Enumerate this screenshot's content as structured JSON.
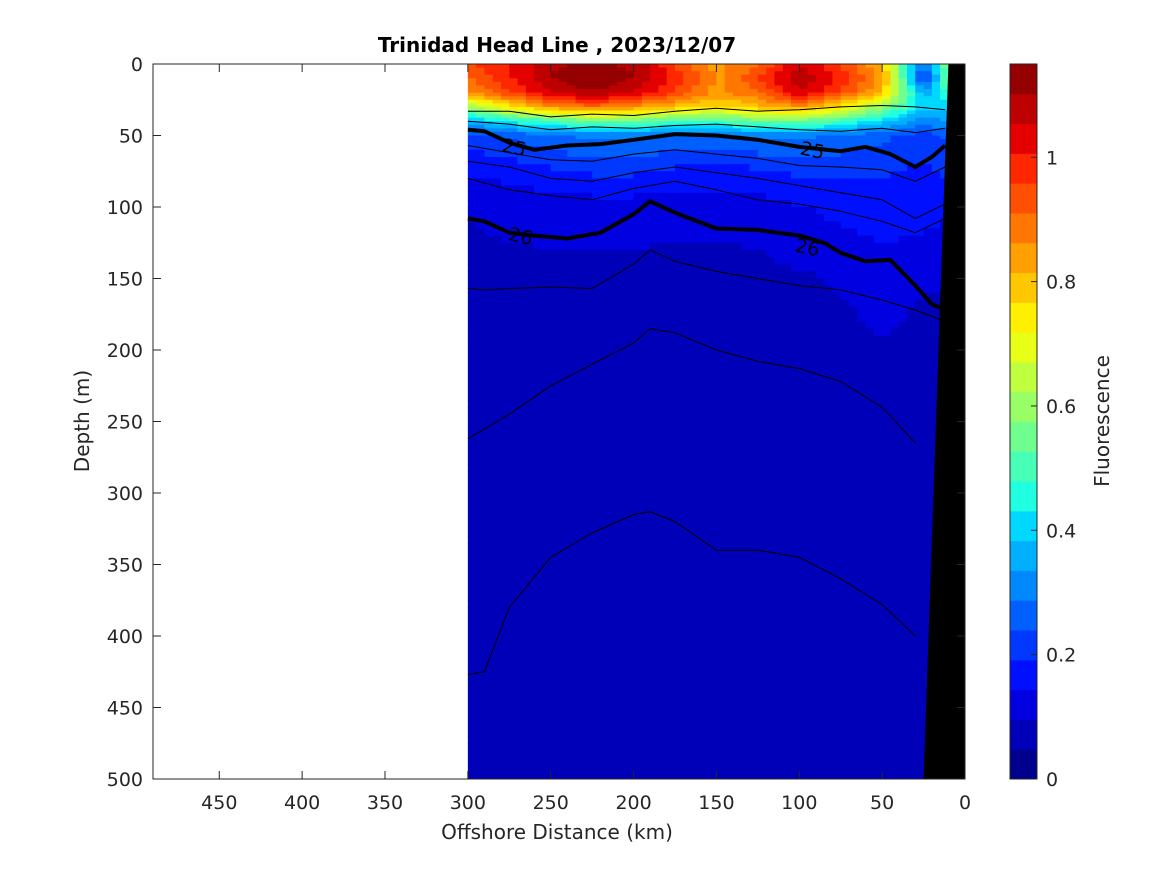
{
  "chart_data": {
    "type": "heatmap",
    "title": "Trinidad Head Line , 2023/12/07",
    "xlabel": "Offshore Distance (km)",
    "ylabel": "Depth (m)",
    "xlim": [
      490,
      0
    ],
    "ylim": [
      0,
      500
    ],
    "x_ticks": [
      450,
      400,
      350,
      300,
      250,
      200,
      150,
      100,
      50,
      0
    ],
    "y_ticks": [
      0,
      50,
      100,
      150,
      200,
      250,
      300,
      350,
      400,
      450,
      500
    ],
    "x_tick_labels": [
      "450",
      "400",
      "350",
      "300",
      "250",
      "200",
      "150",
      "100",
      "50",
      "0"
    ],
    "y_tick_labels": [
      "0",
      "50",
      "100",
      "150",
      "200",
      "250",
      "300",
      "350",
      "400",
      "450",
      "500"
    ],
    "data_extent_x": [
      300,
      10
    ],
    "colorbar": {
      "label": "Fluorescence",
      "range": [
        0,
        1.15
      ],
      "ticks": [
        0,
        0.2,
        0.4,
        0.6,
        0.8,
        1
      ],
      "tick_labels": [
        "0",
        "0.2",
        "0.4",
        "0.6",
        "0.8",
        "1"
      ],
      "colors": [
        "#00008f",
        "#0000b8",
        "#0000e0",
        "#0010ff",
        "#0038ff",
        "#0060ff",
        "#0088ff",
        "#00b0ff",
        "#00d8ff",
        "#20ffdf",
        "#48ffb7",
        "#70ff8f",
        "#98ff67",
        "#c0ff3f",
        "#e8ff17",
        "#ffef00",
        "#ffc700",
        "#ff9f00",
        "#ff7700",
        "#ff4f00",
        "#ff2700",
        "#e50000",
        "#bd0000",
        "#950000"
      ]
    },
    "fluorescence_profile": {
      "x": [
        300,
        275,
        250,
        225,
        200,
        175,
        150,
        125,
        100,
        75,
        50,
        25,
        10
      ],
      "depth": [
        0,
        10,
        20,
        30,
        40,
        50,
        75,
        100,
        150,
        200,
        300,
        400,
        500
      ],
      "values": [
        [
          0.95,
          1.0,
          1.1,
          1.1,
          1.1,
          0.95,
          0.85,
          0.9,
          1.05,
          0.95,
          0.8,
          0.25,
          0.6
        ],
        [
          0.9,
          1.0,
          1.1,
          1.15,
          1.1,
          1.0,
          0.85,
          0.95,
          1.1,
          1.0,
          0.85,
          0.2,
          0.55
        ],
        [
          0.85,
          0.95,
          1.05,
          1.1,
          1.05,
          0.95,
          0.85,
          0.9,
          1.05,
          0.95,
          0.8,
          0.35,
          0.5
        ],
        [
          0.6,
          0.75,
          0.85,
          0.9,
          0.85,
          0.8,
          0.75,
          0.8,
          0.85,
          0.75,
          0.6,
          0.4,
          0.4
        ],
        [
          0.35,
          0.45,
          0.5,
          0.55,
          0.55,
          0.5,
          0.5,
          0.55,
          0.55,
          0.5,
          0.4,
          0.3,
          0.35
        ],
        [
          0.22,
          0.25,
          0.28,
          0.3,
          0.3,
          0.28,
          0.28,
          0.3,
          0.3,
          0.28,
          0.25,
          0.22,
          0.25
        ],
        [
          0.15,
          0.16,
          0.18,
          0.2,
          0.2,
          0.18,
          0.18,
          0.18,
          0.2,
          0.2,
          0.2,
          0.18,
          0.2
        ],
        [
          0.1,
          0.11,
          0.12,
          0.12,
          0.12,
          0.11,
          0.11,
          0.12,
          0.14,
          0.16,
          0.17,
          0.17,
          0.15
        ],
        [
          0.08,
          0.08,
          0.08,
          0.08,
          0.08,
          0.08,
          0.08,
          0.08,
          0.09,
          0.1,
          0.12,
          0.1,
          0.1
        ],
        [
          0.07,
          0.07,
          0.07,
          0.07,
          0.07,
          0.07,
          0.07,
          0.07,
          0.07,
          0.08,
          0.09,
          0.08,
          0.08
        ],
        [
          0.07,
          0.07,
          0.08,
          0.07,
          0.07,
          0.07,
          0.07,
          0.07,
          0.07,
          0.07,
          0.08,
          0.08,
          0.08
        ],
        [
          0.06,
          0.07,
          0.07,
          0.07,
          0.07,
          0.07,
          0.07,
          0.07,
          0.07,
          0.07,
          0.07,
          0.07,
          0.07
        ],
        [
          0.06,
          0.06,
          0.07,
          0.07,
          0.06,
          0.07,
          0.06,
          0.07,
          0.07,
          0.06,
          0.07,
          0.07,
          0.07
        ]
      ]
    },
    "density_contours": [
      {
        "level": 25,
        "label": "25",
        "bold": true,
        "x": [
          300,
          290,
          275,
          260,
          240,
          220,
          200,
          175,
          150,
          125,
          100,
          75,
          60,
          45,
          30,
          20,
          12
        ],
        "depth": [
          46,
          47,
          55,
          60,
          57,
          56,
          53,
          49,
          50,
          53,
          58,
          61,
          58,
          63,
          72,
          65,
          57
        ],
        "label_positions": [
          [
            272,
            58
          ],
          [
            92,
            60
          ]
        ]
      },
      {
        "level": 26,
        "label": "26",
        "bold": true,
        "x": [
          300,
          290,
          275,
          260,
          240,
          220,
          200,
          190,
          175,
          150,
          125,
          100,
          85,
          75,
          60,
          45,
          30,
          20,
          12
        ],
        "depth": [
          108,
          110,
          118,
          120,
          122,
          118,
          105,
          96,
          104,
          115,
          116,
          120,
          125,
          132,
          138,
          137,
          155,
          168,
          172
        ],
        "label_positions": [
          [
            268,
            120
          ],
          [
            95,
            128
          ]
        ]
      },
      {
        "level": 24.5,
        "label": "",
        "bold": false,
        "x": [
          300,
          275,
          250,
          225,
          200,
          175,
          150,
          125,
          100,
          75,
          50,
          30,
          12
        ],
        "depth": [
          33,
          33,
          37,
          35,
          36,
          33,
          31,
          33,
          32,
          30,
          29,
          30,
          32
        ]
      },
      {
        "level": 24.8,
        "label": "",
        "bold": false,
        "x": [
          300,
          275,
          250,
          225,
          200,
          175,
          150,
          125,
          100,
          75,
          50,
          30,
          12
        ],
        "depth": [
          40,
          42,
          46,
          44,
          45,
          43,
          42,
          44,
          46,
          47,
          45,
          48,
          45
        ]
      },
      {
        "level": 25.2,
        "label": "",
        "bold": false,
        "x": [
          300,
          275,
          250,
          225,
          200,
          175,
          150,
          125,
          100,
          75,
          50,
          30,
          12
        ],
        "depth": [
          57,
          62,
          67,
          68,
          63,
          60,
          63,
          66,
          71,
          72,
          74,
          82,
          72
        ]
      },
      {
        "level": 25.4,
        "label": "",
        "bold": false,
        "x": [
          300,
          275,
          250,
          225,
          200,
          175,
          150,
          125,
          100,
          75,
          50,
          30,
          12
        ],
        "depth": [
          68,
          72,
          80,
          82,
          76,
          72,
          76,
          80,
          85,
          90,
          95,
          108,
          98
        ]
      },
      {
        "level": 25.6,
        "label": "",
        "bold": false,
        "x": [
          300,
          275,
          250,
          225,
          200,
          175,
          150,
          125,
          100,
          75,
          50,
          30,
          12
        ],
        "depth": [
          80,
          88,
          92,
          95,
          87,
          82,
          88,
          95,
          98,
          103,
          110,
          118,
          108
        ]
      },
      {
        "level": 26.2,
        "label": "",
        "bold": false,
        "x": [
          300,
          290,
          275,
          250,
          225,
          200,
          190,
          175,
          150,
          125,
          100,
          75,
          50,
          30,
          12
        ],
        "depth": [
          157,
          158,
          157,
          156,
          157,
          140,
          130,
          138,
          145,
          150,
          155,
          158,
          165,
          172,
          180
        ]
      },
      {
        "level": 26.4,
        "label": "",
        "bold": false,
        "x": [
          300,
          275,
          250,
          225,
          200,
          190,
          175,
          150,
          125,
          100,
          75,
          50,
          30
        ],
        "depth": [
          262,
          245,
          225,
          210,
          195,
          185,
          188,
          200,
          208,
          213,
          222,
          240,
          265
        ]
      },
      {
        "level": 26.6,
        "label": "",
        "bold": false,
        "x": [
          300,
          290,
          275,
          250,
          225,
          200,
          190,
          175,
          150,
          125,
          100,
          75,
          50,
          30
        ],
        "depth": [
          427,
          425,
          380,
          345,
          328,
          315,
          313,
          320,
          340,
          340,
          345,
          360,
          378,
          400
        ]
      }
    ],
    "bathymetry": {
      "x": [
        25,
        0,
        0,
        0
      ],
      "depth": [
        500,
        500,
        0,
        0
      ],
      "top_x": [
        10,
        0
      ]
    }
  }
}
